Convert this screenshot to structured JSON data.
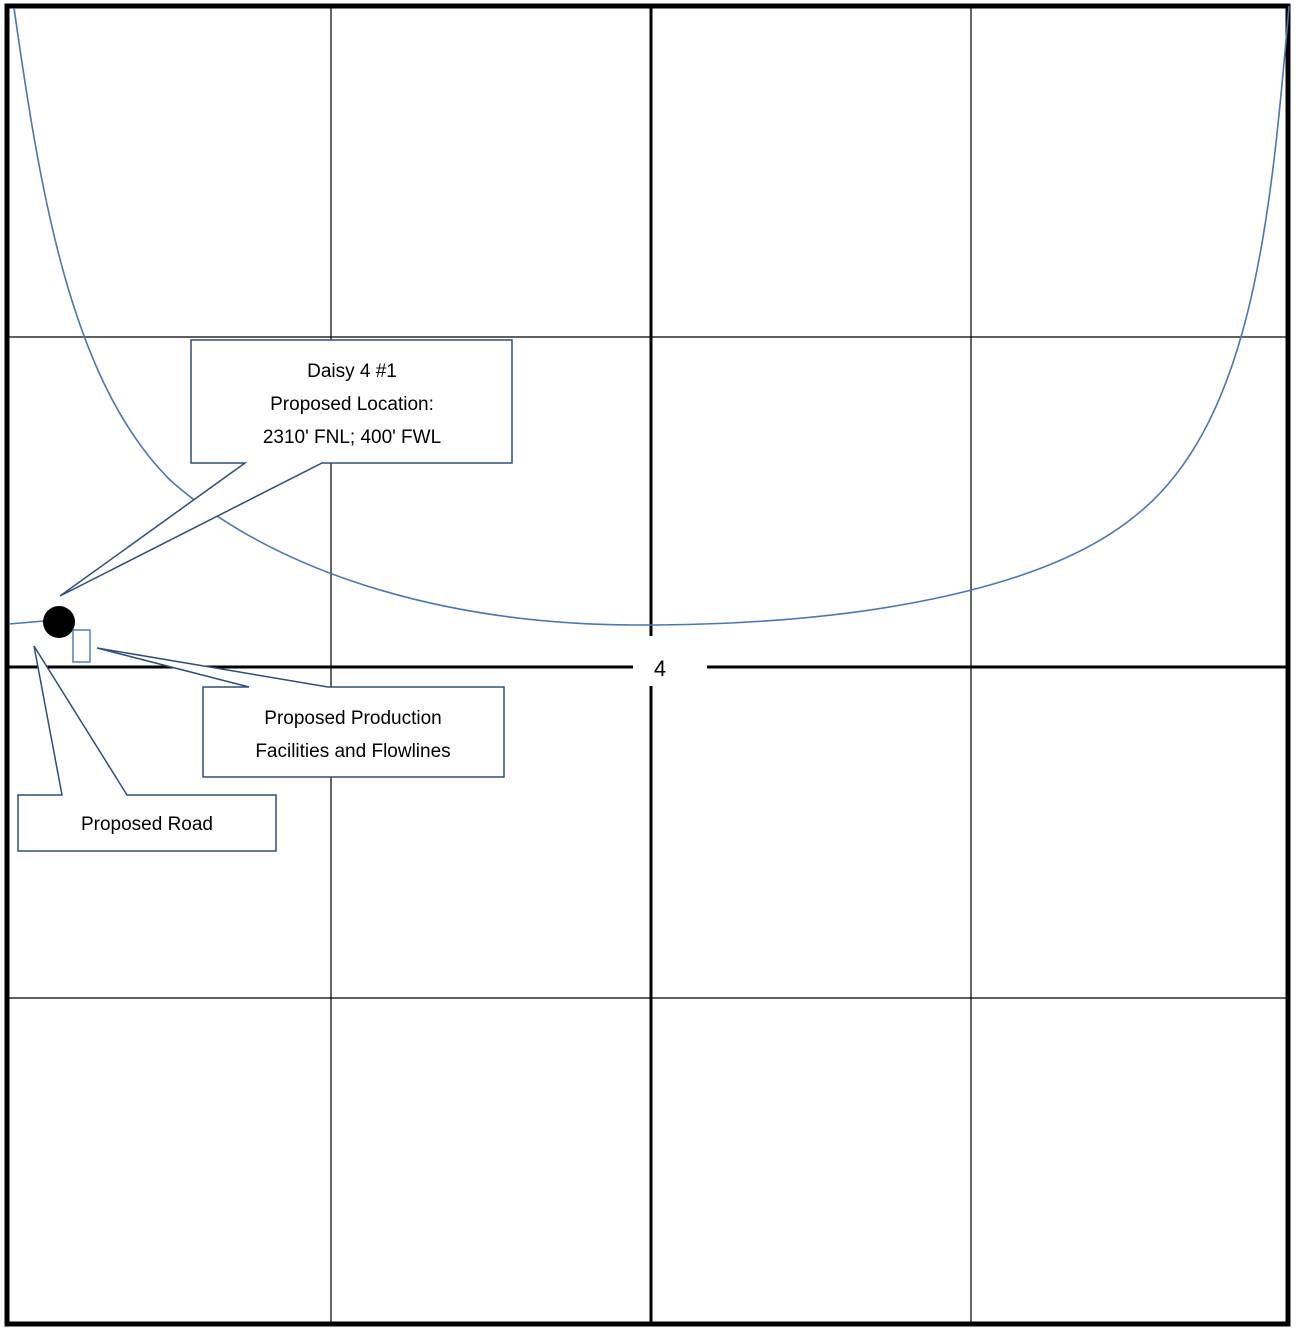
{
  "section": {
    "number": "4"
  },
  "callouts": {
    "well": {
      "line1": "Daisy 4 #1",
      "line2": "Proposed Location:",
      "line3": "2310' FNL; 400' FWL"
    },
    "facilities": {
      "line1": "Proposed Production",
      "line2": "Facilities and Flowlines"
    },
    "road": {
      "label": "Proposed Road"
    }
  },
  "colors": {
    "grid": "#000000",
    "curve": "#4a76b4",
    "callout_border": "#2e4f7a",
    "well_fill": "#000000"
  }
}
